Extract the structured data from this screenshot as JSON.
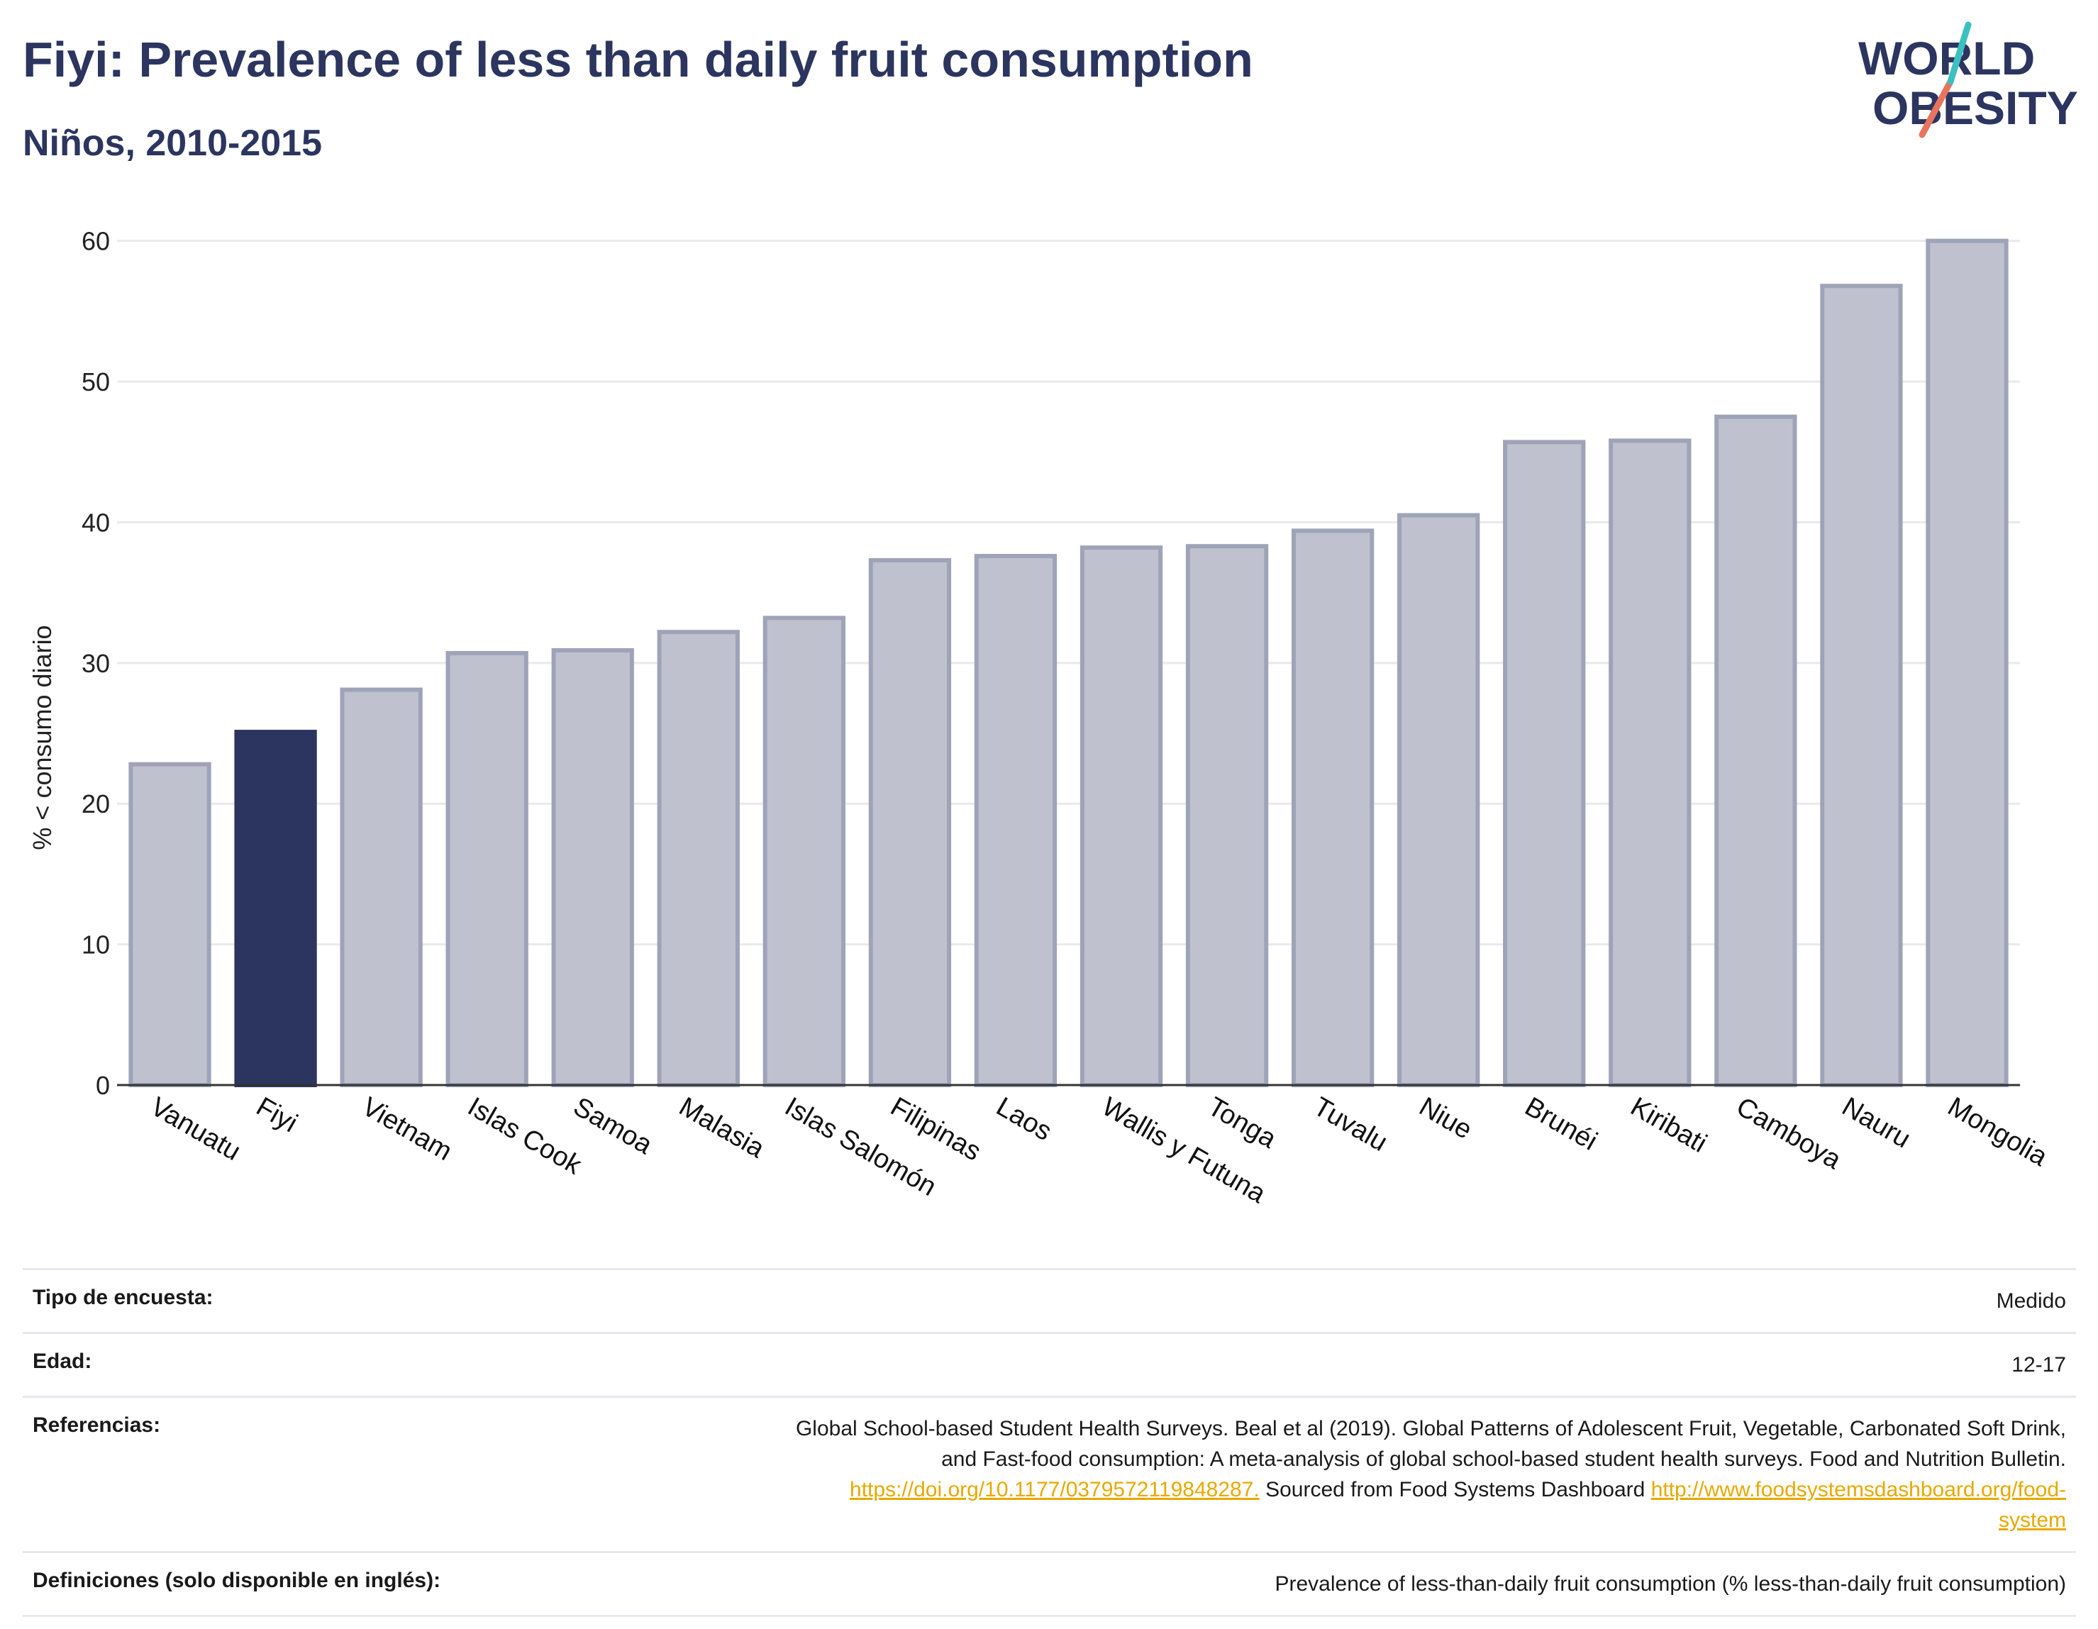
{
  "header": {
    "title": "Fiyi: Prevalence of less than daily fruit consumption",
    "subtitle": "Niños, 2010-2015"
  },
  "logo": {
    "line1": "WORLD",
    "line2": "OBESITY"
  },
  "colors": {
    "highlight": "#2b355f",
    "bar_fill": "#bfc2ce",
    "bar_stroke": "#9ea3b8",
    "link": "#e8a800"
  },
  "chart_data": {
    "type": "bar",
    "ylabel": "% < consumo diario",
    "ylim": [
      0,
      62
    ],
    "yticks": [
      0,
      10,
      20,
      30,
      40,
      50,
      60
    ],
    "grid": true,
    "highlight": "Fiyi",
    "categories": [
      "Vanuatu",
      "Fiyi",
      "Vietnam",
      "Islas Cook",
      "Samoa",
      "Malasia",
      "Islas Salomón",
      "Filipinas",
      "Laos",
      "Wallis y Futuna",
      "Tonga",
      "Tuvalu",
      "Niue",
      "Brunéi",
      "Kiribati",
      "Camboya",
      "Nauru",
      "Mongolia"
    ],
    "values": [
      22.8,
      25.1,
      28.1,
      30.7,
      30.9,
      32.2,
      33.2,
      37.3,
      37.6,
      38.2,
      38.3,
      39.4,
      40.5,
      45.7,
      45.8,
      47.5,
      56.8,
      60.0
    ]
  },
  "metadata": [
    {
      "label": "Tipo de encuesta:",
      "value": "Medido"
    },
    {
      "label": "Edad:",
      "value": "12-17"
    },
    {
      "label": "Referencias:",
      "value_line1": "Global School-based Student Health Surveys. Beal et al (2019). Global Patterns of Adolescent Fruit, Vegetable, Carbonated Soft Drink,",
      "value_line2": "and Fast-food consumption: A meta-analysis of global school-based student health surveys. Food and Nutrition Bulletin.",
      "link1": "https://doi.org/10.1177/0379572119848287.",
      "mid_text": " Sourced from Food Systems Dashboard ",
      "link2a": "http://www.foodsystemsdashboard.org/food-",
      "link2b": "system"
    },
    {
      "label": "Definiciones (solo disponible en inglés):",
      "value": "Prevalence of less-than-daily fruit consumption (% less-than-daily fruit consumption)"
    }
  ]
}
